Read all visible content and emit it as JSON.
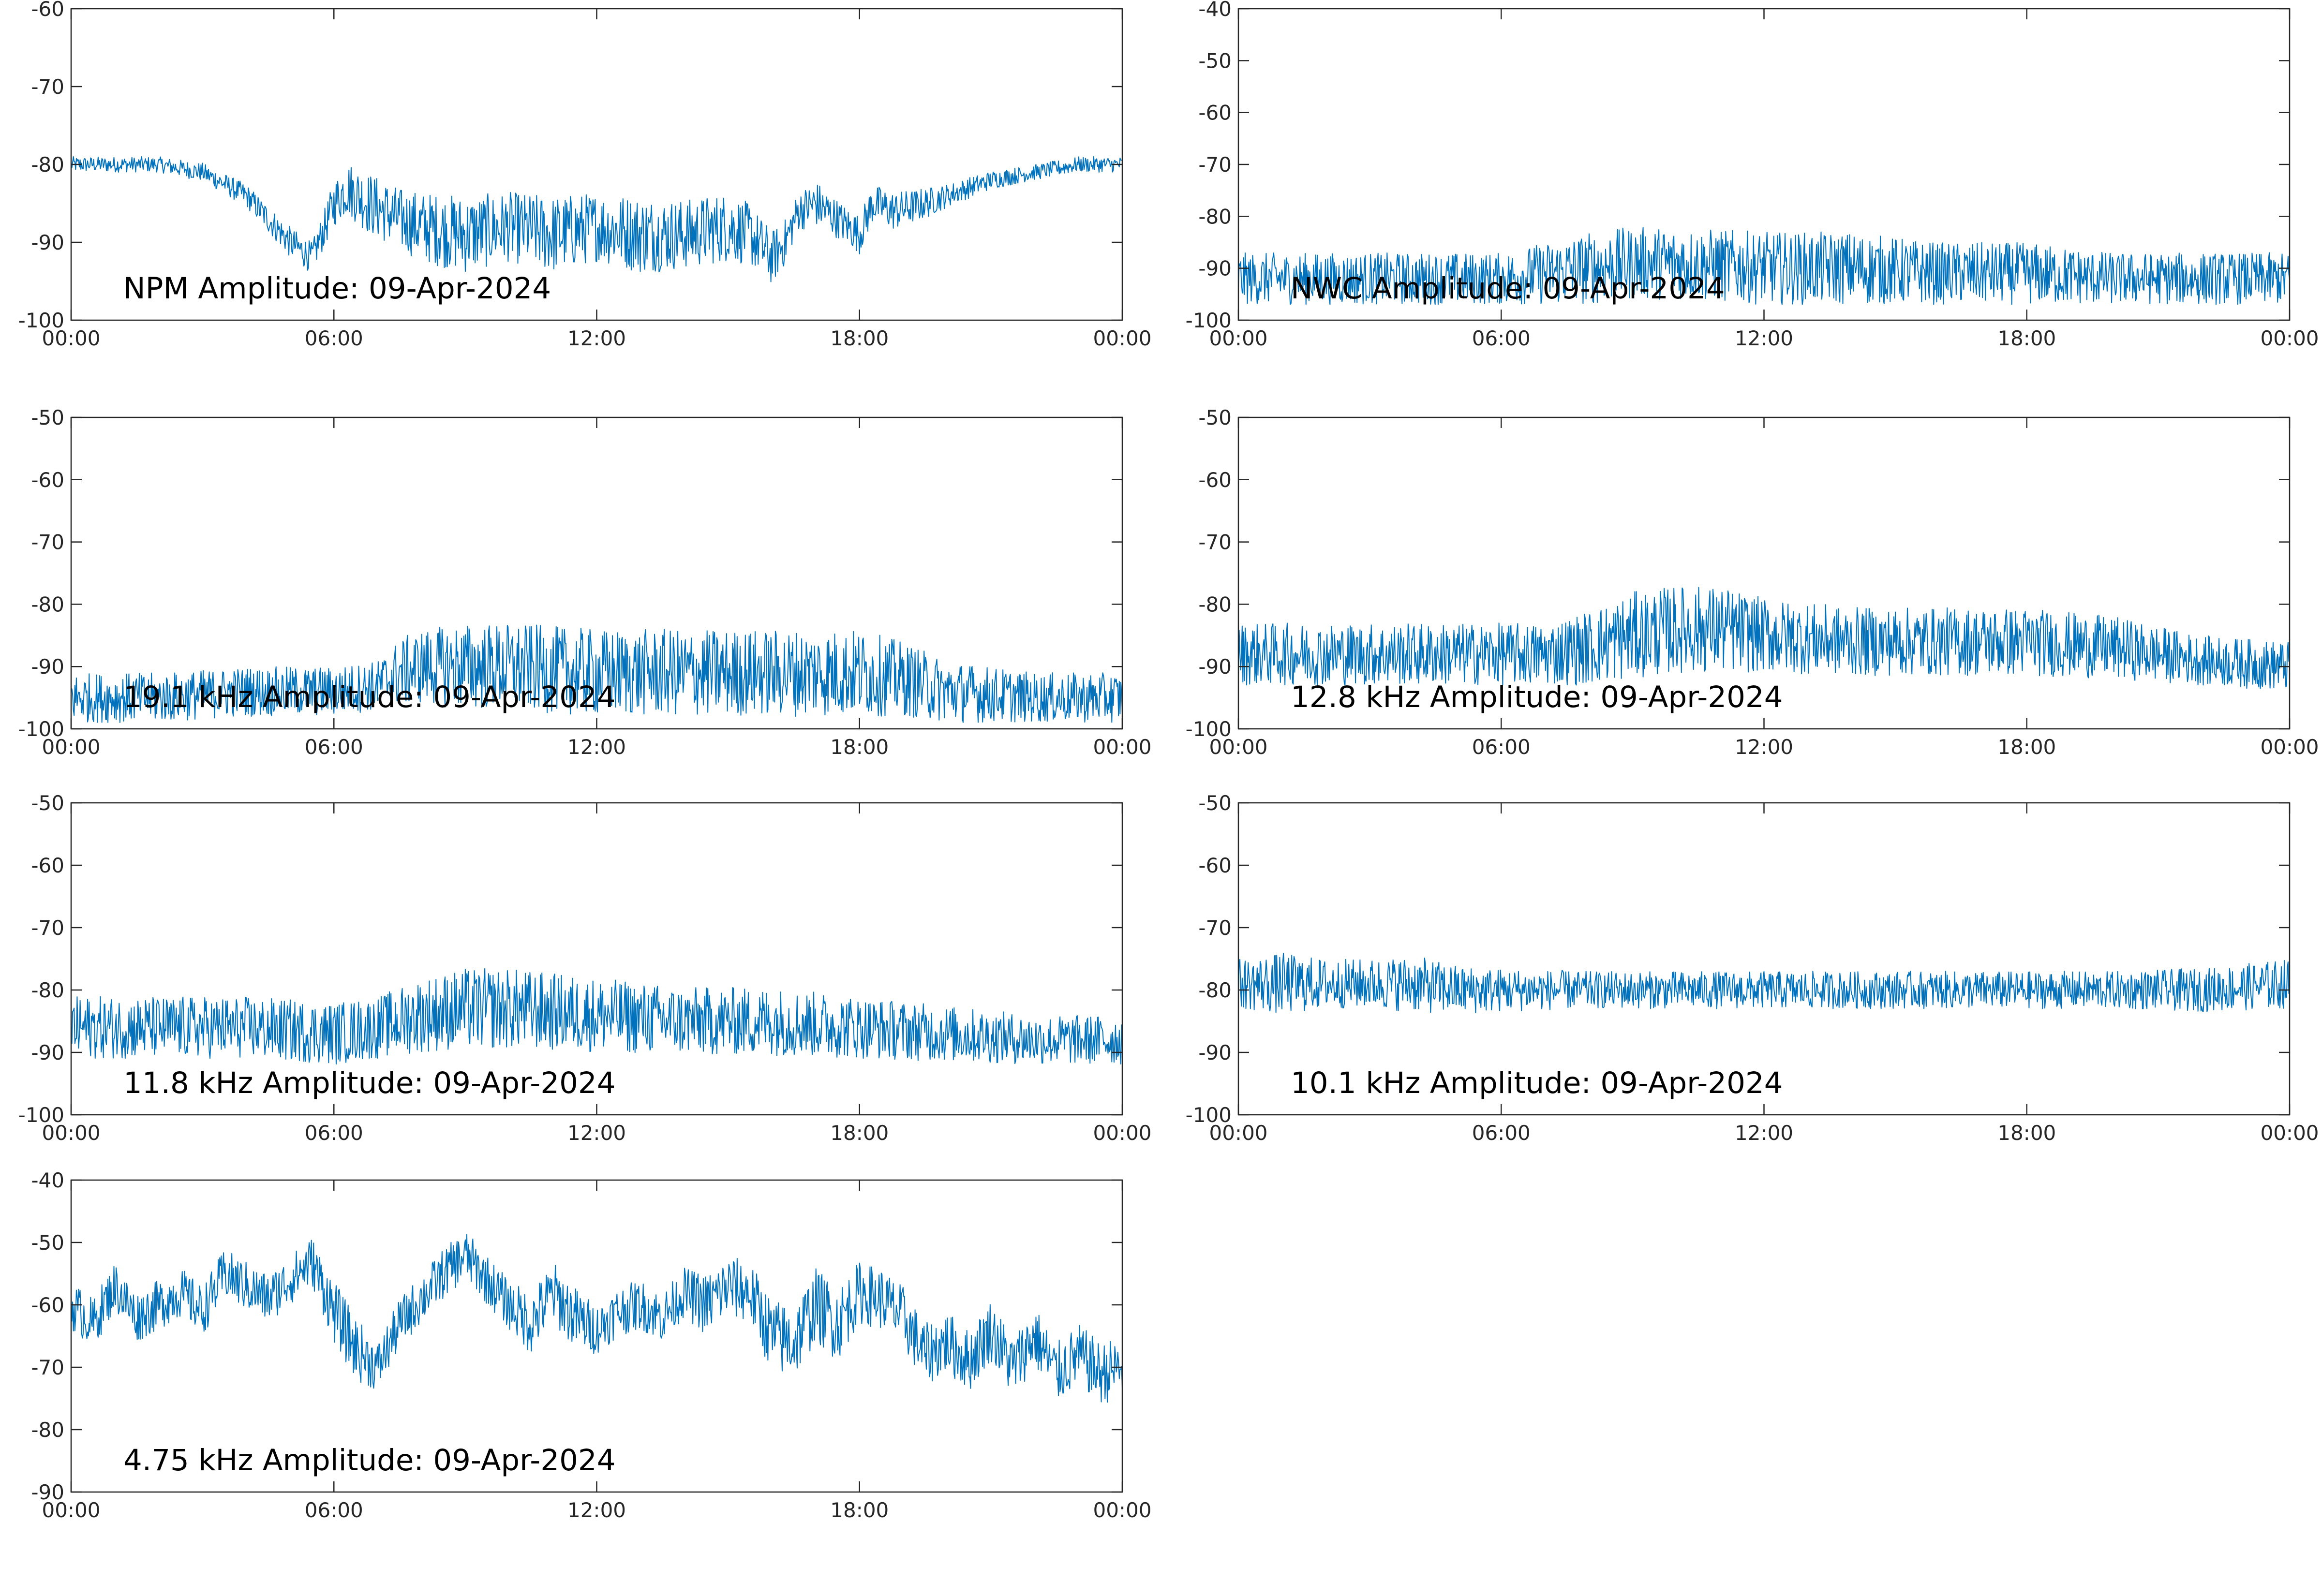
{
  "colors": {
    "series": "#0072BD",
    "axes": "#262626",
    "background": "#FFFFFF"
  },
  "chart_data": [
    {
      "type": "line",
      "title": "NPM Amplitude: 09-Apr-2024",
      "xlabel": "",
      "ylabel": "",
      "xlim": [
        0,
        24
      ],
      "ylim": [
        -100,
        -60
      ],
      "x_ticks": [
        "00:00",
        "06:00",
        "12:00",
        "18:00",
        "00:00"
      ],
      "y_ticks": [
        "-60",
        "-70",
        "-80",
        "-90",
        "-100"
      ],
      "series": [
        {
          "x": [
            0,
            1,
            2,
            3,
            4,
            4.5,
            5,
            5.5,
            5.8,
            6,
            6.3,
            6.8,
            7.5,
            8,
            9,
            10,
            11,
            12,
            13,
            14,
            15,
            15.5,
            16,
            16.3,
            16.6,
            17,
            17.5,
            18,
            18.3,
            18.8,
            19.5,
            20,
            21,
            22,
            23,
            24
          ],
          "mean": [
            -80,
            -80,
            -80,
            -81,
            -84,
            -87,
            -90,
            -92,
            -88,
            -85,
            -83,
            -85,
            -87,
            -88,
            -89,
            -88,
            -89,
            -88,
            -89,
            -89,
            -88,
            -89,
            -92,
            -90,
            -86,
            -85,
            -87,
            -89,
            -85,
            -86,
            -85,
            -84,
            -82,
            -81,
            -80,
            -80
          ],
          "spread": [
            1,
            1,
            1,
            1.2,
            1.5,
            1.8,
            2,
            2,
            2.5,
            3,
            3.5,
            4,
            4,
            4.5,
            5,
            4.5,
            5,
            4.5,
            5,
            4.5,
            4.5,
            4,
            3.5,
            3,
            2.5,
            3,
            2.5,
            2.5,
            2.5,
            2.5,
            2,
            1.5,
            1.2,
            1,
            1,
            1
          ]
        }
      ]
    },
    {
      "type": "line",
      "title": "NWC Amplitude: 09-Apr-2024",
      "xlabel": "",
      "ylabel": "",
      "xlim": [
        0,
        24
      ],
      "ylim": [
        -100,
        -40
      ],
      "x_ticks": [
        "00:00",
        "06:00",
        "12:00",
        "18:00",
        "00:00"
      ],
      "y_ticks": [
        "-40",
        "-50",
        "-60",
        "-70",
        "-80",
        "-90",
        "-100"
      ],
      "series": [
        {
          "x": [
            0,
            2,
            4,
            6,
            7,
            8,
            9,
            10,
            12,
            14,
            16,
            18,
            20,
            22,
            24
          ],
          "mean": [
            -92,
            -92,
            -92,
            -92,
            -91,
            -90,
            -89,
            -89,
            -90,
            -90,
            -91,
            -91,
            -92,
            -92,
            -92
          ],
          "spread": [
            5,
            5,
            5,
            5,
            6,
            7,
            7,
            7,
            7,
            7,
            6,
            6,
            5,
            5,
            5
          ]
        }
      ]
    },
    {
      "type": "line",
      "title": "19.1 kHz Amplitude: 09-Apr-2024",
      "xlabel": "",
      "ylabel": "",
      "xlim": [
        0,
        24
      ],
      "ylim": [
        -100,
        -50
      ],
      "x_ticks": [
        "00:00",
        "06:00",
        "12:00",
        "18:00",
        "00:00"
      ],
      "y_ticks": [
        "-50",
        "-60",
        "-70",
        "-80",
        "-90",
        "-100"
      ],
      "series": [
        {
          "x": [
            0,
            2,
            4,
            6,
            7,
            7.5,
            8,
            9,
            10,
            12,
            14,
            16,
            18,
            19,
            20,
            22,
            24
          ],
          "mean": [
            -95,
            -95,
            -94,
            -94,
            -93,
            -91,
            -90,
            -90,
            -90,
            -91,
            -91,
            -91,
            -91,
            -92,
            -94,
            -95,
            -95
          ],
          "spread": [
            4,
            4,
            4,
            4,
            4,
            5.5,
            6,
            7,
            7,
            7,
            7,
            7,
            7,
            6,
            5,
            4,
            4
          ]
        }
      ]
    },
    {
      "type": "line",
      "title": "12.8 kHz Amplitude: 09-Apr-2024",
      "xlabel": "",
      "ylabel": "",
      "xlim": [
        0,
        24
      ],
      "ylim": [
        -100,
        -50
      ],
      "x_ticks": [
        "00:00",
        "06:00",
        "12:00",
        "18:00",
        "00:00"
      ],
      "y_ticks": [
        "-50",
        "-60",
        "-70",
        "-80",
        "-90",
        "-100"
      ],
      "series": [
        {
          "x": [
            0,
            2,
            4,
            6,
            7,
            8,
            9,
            10,
            11,
            12,
            14,
            16,
            17,
            18,
            20,
            22,
            24
          ],
          "mean": [
            -88,
            -88,
            -88,
            -88,
            -88,
            -87,
            -85,
            -84,
            -84,
            -85,
            -86,
            -86,
            -86,
            -86,
            -87,
            -89,
            -90
          ],
          "spread": [
            5,
            5,
            5,
            5,
            5,
            6,
            7,
            7,
            7,
            6,
            5.5,
            5.5,
            5.5,
            5.5,
            5,
            4,
            4
          ]
        }
      ]
    },
    {
      "type": "line",
      "title": "11.8 kHz Amplitude: 09-Apr-2024",
      "xlabel": "",
      "ylabel": "",
      "xlim": [
        0,
        24
      ],
      "ylim": [
        -100,
        -50
      ],
      "x_ticks": [
        "00:00",
        "06:00",
        "12:00",
        "18:00",
        "00:00"
      ],
      "y_ticks": [
        "-50",
        "-60",
        "-70",
        "-80",
        "-90",
        "-100"
      ],
      "series": [
        {
          "x": [
            0,
            2,
            4,
            6,
            7,
            8,
            9,
            10,
            12,
            14,
            16,
            18,
            20,
            22,
            24
          ],
          "mean": [
            -86,
            -86,
            -86,
            -87,
            -86,
            -84,
            -83,
            -83,
            -84,
            -85,
            -85,
            -86,
            -87,
            -88,
            -88
          ],
          "spread": [
            5,
            5,
            5,
            5,
            5,
            6,
            6.5,
            6.5,
            6,
            5.5,
            5.5,
            5,
            4.5,
            4,
            4
          ]
        }
      ]
    },
    {
      "type": "line",
      "title": "10.1 kHz Amplitude: 09-Apr-2024",
      "xlabel": "",
      "ylabel": "",
      "xlim": [
        0,
        24
      ],
      "ylim": [
        -100,
        -50
      ],
      "x_ticks": [
        "00:00",
        "06:00",
        "12:00",
        "18:00",
        "00:00"
      ],
      "y_ticks": [
        "-50",
        "-60",
        "-70",
        "-80",
        "-90",
        "-100"
      ],
      "series": [
        {
          "x": [
            0,
            1,
            2,
            3,
            4,
            5,
            6,
            8,
            10,
            12,
            14,
            16,
            18,
            20,
            22,
            24
          ],
          "mean": [
            -79,
            -79,
            -79,
            -79,
            -79,
            -80,
            -80,
            -80,
            -80,
            -80,
            -80,
            -80,
            -80,
            -80,
            -80,
            -79
          ],
          "spread": [
            4,
            5,
            4,
            4,
            4.5,
            4,
            3.5,
            3,
            3,
            3,
            3,
            3,
            3,
            3,
            3.5,
            4
          ]
        }
      ]
    },
    {
      "type": "line",
      "title": "4.75 kHz Amplitude: 09-Apr-2024",
      "xlabel": "",
      "ylabel": "",
      "xlim": [
        0,
        24
      ],
      "ylim": [
        -90,
        -40
      ],
      "x_ticks": [
        "00:00",
        "06:00",
        "12:00",
        "18:00",
        "00:00"
      ],
      "y_ticks": [
        "-40",
        "-50",
        "-60",
        "-70",
        "-80",
        "-90"
      ],
      "series": [
        {
          "x": [
            0,
            0.5,
            1,
            1.5,
            2,
            2.5,
            3,
            3.5,
            4,
            4.5,
            5,
            5.5,
            6,
            6.5,
            7,
            7.5,
            8,
            8.5,
            9,
            9.5,
            10,
            10.5,
            11,
            11.5,
            12,
            12.5,
            13,
            13.5,
            14,
            14.5,
            15,
            15.5,
            16,
            16.5,
            17,
            17.5,
            18,
            18.5,
            19,
            19.5,
            20,
            20.5,
            21,
            21.5,
            22,
            22.5,
            23,
            23.5,
            24
          ],
          "mean": [
            -60,
            -63,
            -57,
            -62,
            -60,
            -58,
            -61,
            -55,
            -57,
            -59,
            -56,
            -53,
            -61,
            -67,
            -70,
            -63,
            -59,
            -55,
            -52,
            -56,
            -60,
            -63,
            -58,
            -62,
            -64,
            -61,
            -60,
            -62,
            -58,
            -60,
            -57,
            -58,
            -65,
            -66,
            -60,
            -63,
            -58,
            -59,
            -62,
            -68,
            -66,
            -69,
            -64,
            -70,
            -65,
            -71,
            -68,
            -71,
            -70
          ],
          "spread": [
            4,
            4,
            4,
            4,
            4,
            4,
            4,
            4,
            4,
            4,
            4,
            4,
            5,
            5,
            4,
            4,
            4,
            4,
            4,
            4,
            4,
            5,
            5,
            5,
            4,
            4,
            4,
            4,
            4,
            5,
            5,
            5,
            6,
            6,
            6,
            6,
            5,
            5,
            5,
            5,
            5,
            5,
            5,
            5,
            5,
            5,
            5,
            5,
            5
          ]
        }
      ]
    }
  ]
}
